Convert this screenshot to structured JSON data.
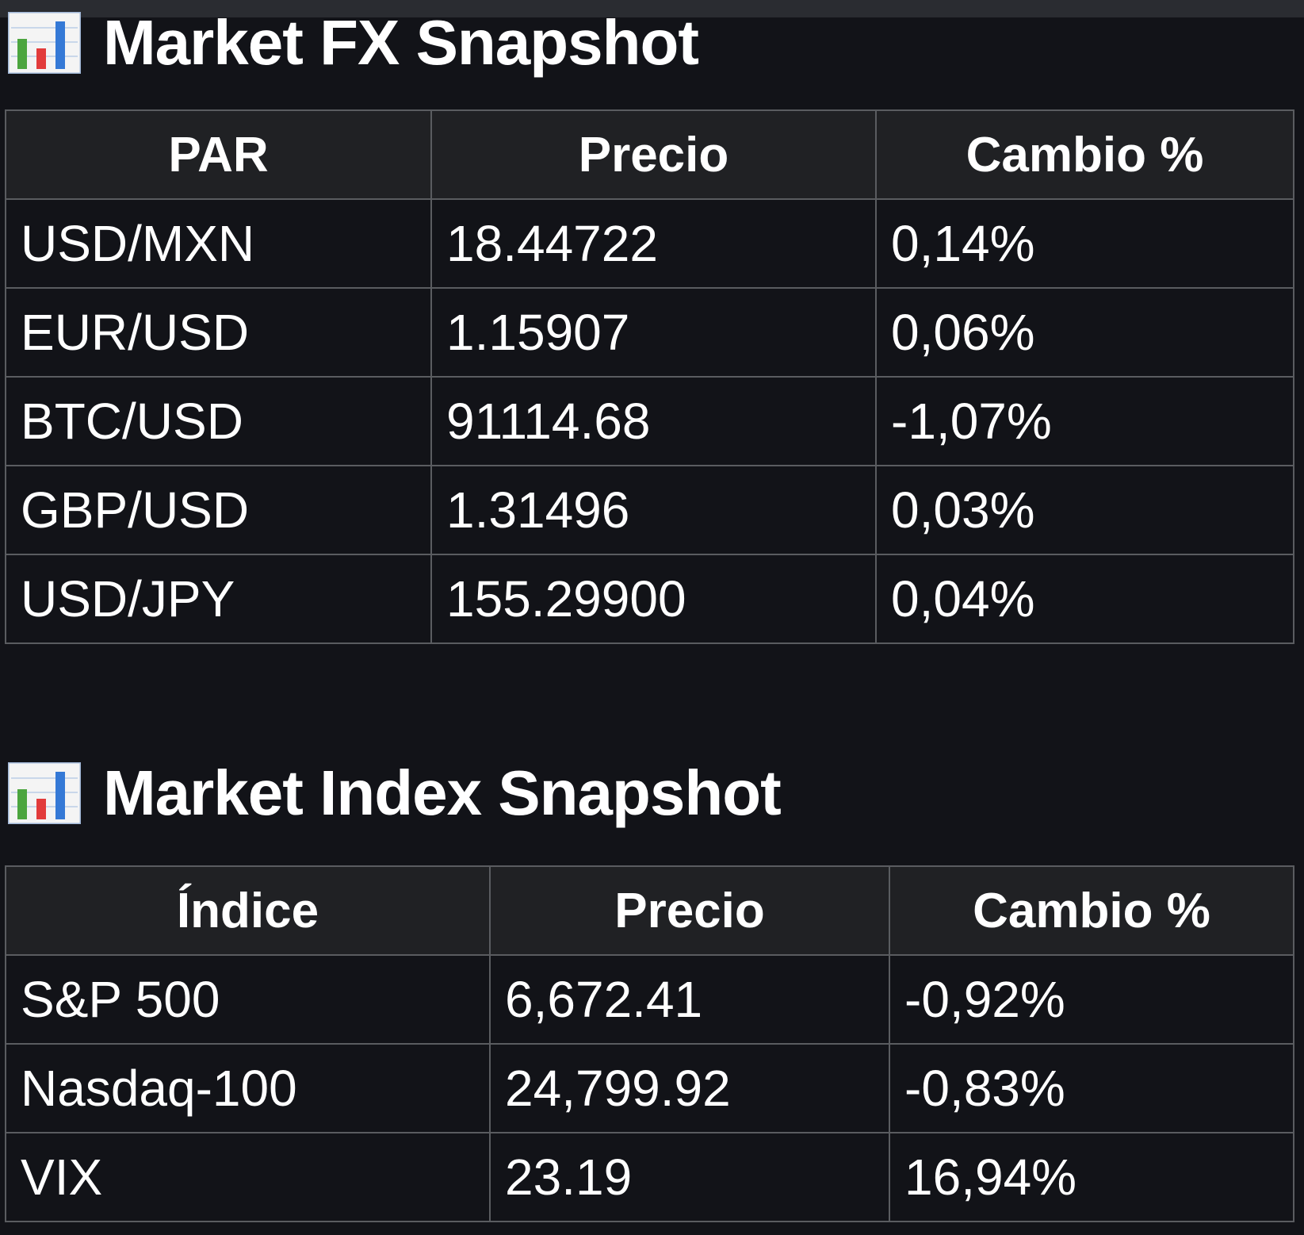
{
  "fx": {
    "title": "Market FX Snapshot",
    "icon": "bar-chart-icon",
    "headers": [
      "PAR",
      "Precio",
      "Cambio %"
    ],
    "rows": [
      {
        "pair": "USD/MXN",
        "price": "18.44722",
        "change": "0,14%",
        "direction": "up"
      },
      {
        "pair": "EUR/USD",
        "price": "1.15907",
        "change": "0,06%",
        "direction": "up"
      },
      {
        "pair": "BTC/USD",
        "price": "91114.68",
        "change": "-1,07%",
        "direction": "down"
      },
      {
        "pair": "GBP/USD",
        "price": "1.31496",
        "change": "0,03%",
        "direction": "up"
      },
      {
        "pair": "USD/JPY",
        "price": "155.29900",
        "change": "0,04%",
        "direction": "up"
      }
    ]
  },
  "index": {
    "title": "Market Index Snapshot",
    "icon": "bar-chart-icon",
    "headers": [
      "Índice",
      "Precio",
      "Cambio %"
    ],
    "rows": [
      {
        "pair": "S&P 500",
        "price": "6,672.41",
        "change": "-0,92%",
        "direction": "down"
      },
      {
        "pair": "Nasdaq-100",
        "price": "24,799.92",
        "change": "-0,83%",
        "direction": "down"
      },
      {
        "pair": "VIX",
        "price": "23.19",
        "change": "16,94%",
        "direction": "up"
      }
    ]
  },
  "colors": {
    "background": "#121318",
    "header_background": "#202124",
    "positive": "#3cc33c",
    "negative": "#ff5233",
    "grid": "#5a5c60"
  }
}
